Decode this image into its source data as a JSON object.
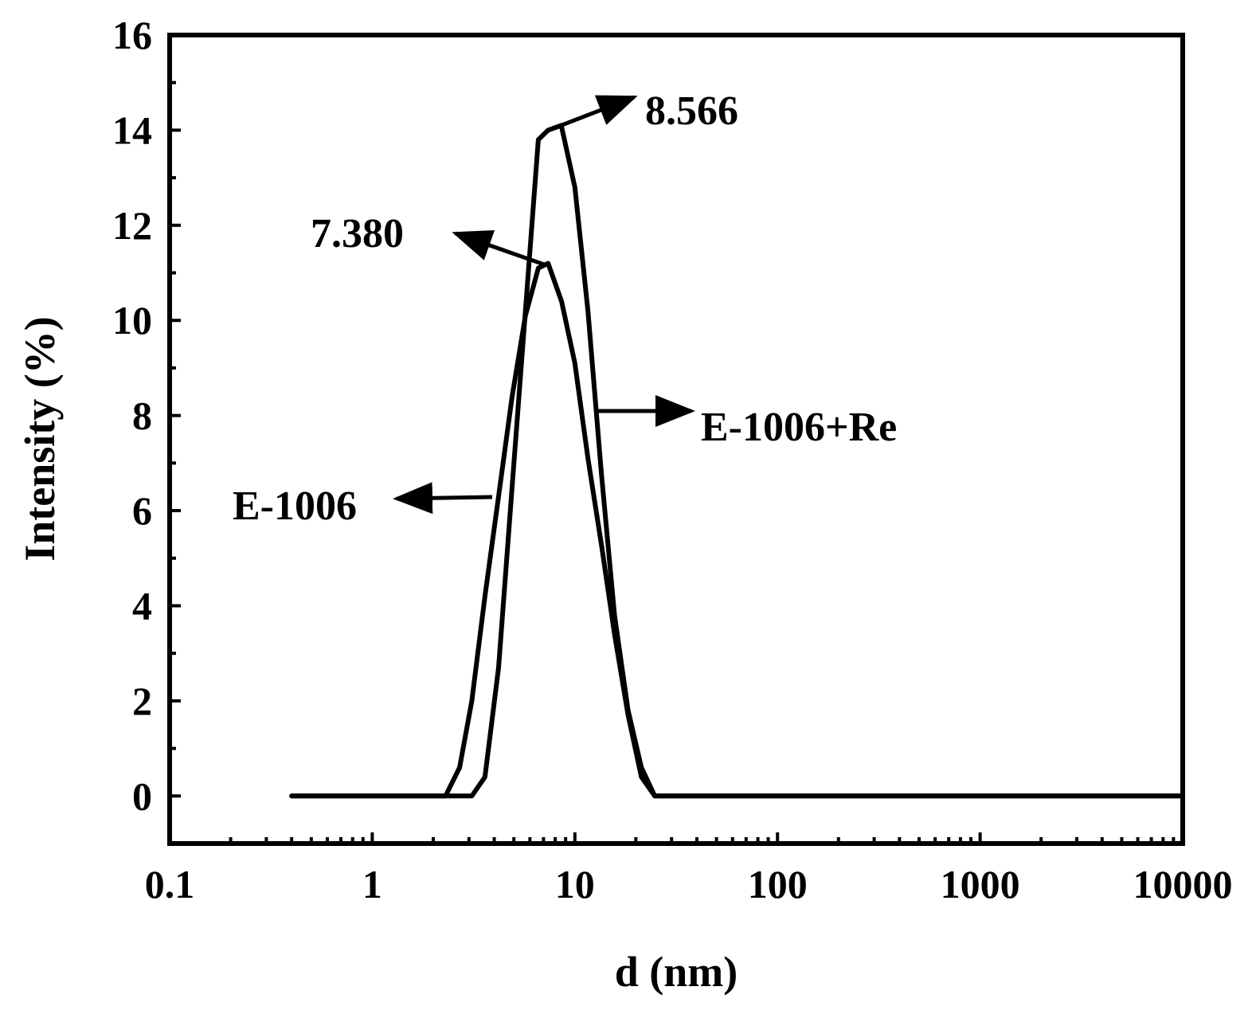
{
  "chart_data": {
    "type": "line",
    "xscale": "log",
    "xlabel": "d (nm)",
    "ylabel": "Intensity (%)",
    "xlim": [
      0.1,
      10000
    ],
    "ylim": [
      -1,
      16
    ],
    "x_ticks": [
      0.1,
      1,
      10,
      100,
      1000,
      10000
    ],
    "x_tick_labels": [
      "0.1",
      "1",
      "10",
      "100",
      "1000",
      "10000"
    ],
    "y_ticks": [
      0,
      2,
      4,
      6,
      8,
      10,
      12,
      14,
      16
    ],
    "y_tick_labels": [
      "0",
      "2",
      "4",
      "6",
      "8",
      "10",
      "12",
      "14",
      "16"
    ],
    "grid": false,
    "series": [
      {
        "name": "E-1006",
        "x": [
          0.4,
          2.3,
          2.7,
          3.1,
          3.6,
          4.2,
          4.9,
          5.7,
          6.6,
          7.38,
          8.6,
          10.0,
          11.6,
          13.5,
          15.7,
          18.3,
          21.3,
          24.8,
          28.0,
          10000
        ],
        "y": [
          0,
          0,
          0.6,
          2.0,
          4.2,
          6.3,
          8.4,
          10.1,
          11.1,
          11.2,
          10.4,
          9.1,
          7.1,
          5.3,
          3.4,
          1.7,
          0.4,
          0,
          0,
          0
        ]
      },
      {
        "name": "E-1006+Re",
        "x": [
          0.4,
          3.1,
          3.6,
          4.2,
          4.9,
          5.7,
          6.6,
          7.38,
          8.566,
          10.0,
          11.6,
          13.5,
          15.7,
          18.3,
          21.3,
          24.8,
          10000
        ],
        "y": [
          0,
          0,
          0.4,
          2.7,
          6.5,
          10.2,
          13.8,
          14.0,
          14.1,
          12.8,
          10.2,
          6.8,
          3.8,
          1.8,
          0.6,
          0,
          0
        ]
      }
    ],
    "annotations": [
      {
        "text": "8.566",
        "target_x": 8.566,
        "target_y": 14.1
      },
      {
        "text": "7.380",
        "target_x": 7.38,
        "target_y": 11.2
      },
      {
        "text": "E-1006+Re",
        "series": "E-1006+Re"
      },
      {
        "text": "E-1006",
        "series": "E-1006"
      }
    ]
  }
}
